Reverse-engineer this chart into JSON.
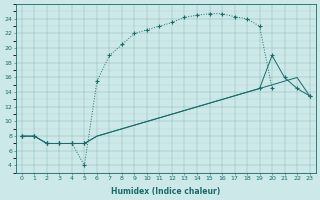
{
  "xlabel": "Humidex (Indice chaleur)",
  "bg_color": "#cce8e8",
  "line_color": "#1a6b6b",
  "xlim": [
    -0.5,
    23.5
  ],
  "ylim": [
    3,
    26
  ],
  "xticks": [
    0,
    1,
    2,
    3,
    4,
    5,
    6,
    7,
    8,
    9,
    10,
    11,
    12,
    13,
    14,
    15,
    16,
    17,
    18,
    19,
    20,
    21,
    22,
    23
  ],
  "yticks": [
    4,
    6,
    8,
    10,
    12,
    14,
    16,
    18,
    20,
    22,
    24
  ],
  "series1_x": [
    0,
    1,
    2,
    3,
    4,
    5,
    6,
    7,
    8,
    9,
    10,
    11,
    12,
    13,
    14,
    15,
    16,
    17,
    18,
    19,
    20,
    21,
    22,
    23
  ],
  "series1_y": [
    8,
    8,
    7,
    7,
    7,
    4,
    15.5,
    19,
    20.5,
    22,
    22.5,
    23,
    23.5,
    24.2,
    24.5,
    24.7,
    24.7,
    24.3,
    24.0,
    23,
    14.5,
    null,
    null,
    null
  ],
  "series2_x": [
    0,
    1,
    2,
    3,
    4,
    5,
    6,
    7,
    8,
    9,
    10,
    11,
    12,
    13,
    14,
    15,
    16,
    17,
    18,
    19,
    20,
    21,
    22,
    23
  ],
  "series2_y": [
    8,
    8,
    7,
    7,
    7,
    7,
    8,
    8.5,
    9,
    9.5,
    10,
    10.5,
    11,
    11.5,
    12,
    12.5,
    13,
    13.5,
    14,
    14.5,
    19,
    16,
    14.5,
    13.5
  ],
  "series3_x": [
    0,
    1,
    2,
    3,
    4,
    5,
    6,
    7,
    8,
    9,
    10,
    11,
    12,
    13,
    14,
    15,
    16,
    17,
    18,
    19,
    20,
    21,
    22,
    23
  ],
  "series3_y": [
    8,
    8,
    7,
    7,
    7,
    7,
    8,
    8.5,
    9,
    9.5,
    10,
    10.5,
    11,
    11.5,
    12,
    12.5,
    13,
    13.5,
    14,
    14.5,
    15,
    15.5,
    16,
    13.5
  ],
  "series1_markers_x": [
    0,
    1,
    2,
    3,
    4,
    5,
    6,
    7,
    8,
    9,
    10,
    11,
    12,
    13,
    14,
    15,
    16,
    17,
    18,
    19,
    20
  ],
  "series1_markers_y": [
    8,
    8,
    7,
    7,
    7,
    4,
    15.5,
    19,
    20.5,
    22,
    22.5,
    23,
    23.5,
    24.2,
    24.5,
    24.7,
    24.7,
    24.3,
    24.0,
    23,
    14.5
  ],
  "series2_markers_x": [
    0,
    1,
    2,
    3,
    4,
    5,
    19,
    20,
    21,
    22,
    23
  ],
  "series2_markers_y": [
    8,
    8,
    7,
    7,
    7,
    7,
    14.5,
    19,
    16,
    14.5,
    13.5
  ],
  "series3_markers_x": [
    0,
    1,
    2,
    3,
    4,
    5,
    23
  ],
  "series3_markers_y": [
    8,
    8,
    7,
    7,
    7,
    7,
    13.5
  ]
}
